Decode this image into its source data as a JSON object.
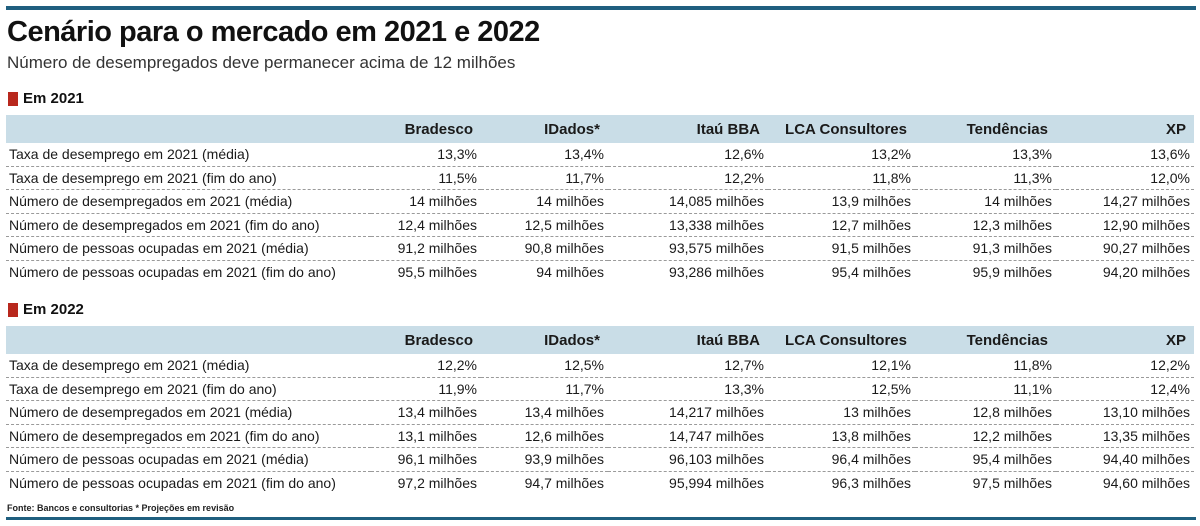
{
  "title": "Cenário para o mercado em 2021 e 2022",
  "subtitle": "Número de desempregados deve permanecer acima de 12 milhões",
  "columns": [
    "Bradesco",
    "IDados*",
    "Itaú BBA",
    "LCA Consultores",
    "Tendências",
    "XP"
  ],
  "sections": [
    {
      "label": "Em 2021",
      "rows": [
        {
          "label": "Taxa de desemprego em 2021 (média)",
          "values": [
            "13,3%",
            "13,4%",
            "12,6%",
            "13,2%",
            "13,3%",
            "13,6%"
          ]
        },
        {
          "label": "Taxa de desemprego em 2021 (fim do ano)",
          "values": [
            "11,5%",
            "11,7%",
            "12,2%",
            "11,8%",
            "11,3%",
            "12,0%"
          ]
        },
        {
          "label": "Número de desempregados em 2021 (média)",
          "values": [
            "14 milhões",
            "14 milhões",
            "14,085 milhões",
            "13,9 milhões",
            "14 milhões",
            "14,27 milhões"
          ]
        },
        {
          "label": "Número de desempregados em 2021 (fim do ano)",
          "values": [
            "12,4 milhões",
            "12,5 milhões",
            "13,338 milhões",
            "12,7 milhões",
            "12,3 milhões",
            "12,90 milhões"
          ]
        },
        {
          "label": "Número de pessoas ocupadas em 2021 (média)",
          "values": [
            "91,2 milhões",
            "90,8 milhões",
            "93,575 milhões",
            "91,5 milhões",
            "91,3 milhões",
            "90,27 milhões"
          ]
        },
        {
          "label": "Número de pessoas ocupadas em 2021 (fim do ano)",
          "values": [
            "95,5 milhões",
            "94 milhões",
            "93,286 milhões",
            "95,4 milhões",
            "95,9 milhões",
            "94,20 milhões"
          ]
        }
      ]
    },
    {
      "label": "Em 2022",
      "rows": [
        {
          "label": "Taxa de desemprego em 2021 (média)",
          "values": [
            "12,2%",
            "12,5%",
            "12,7%",
            "12,1%",
            "11,8%",
            "12,2%"
          ]
        },
        {
          "label": "Taxa de desemprego em 2021 (fim do ano)",
          "values": [
            "11,9%",
            "11,7%",
            "13,3%",
            "12,5%",
            "11,1%",
            "12,4%"
          ]
        },
        {
          "label": "Número de desempregados em 2021 (média)",
          "values": [
            "13,4 milhões",
            "13,4 milhões",
            "14,217 milhões",
            "13 milhões",
            "12,8 milhões",
            "13,10 milhões"
          ]
        },
        {
          "label": "Número de desempregados em 2021 (fim do ano)",
          "values": [
            "13,1 milhões",
            "12,6 milhões",
            "14,747 milhões",
            "13,8 milhões",
            "12,2 milhões",
            "13,35 milhões"
          ]
        },
        {
          "label": "Número de pessoas ocupadas em 2021 (média)",
          "values": [
            "96,1 milhões",
            "93,9 milhões",
            "96,103 milhões",
            "96,4 milhões",
            "95,4 milhões",
            "94,40 milhões"
          ]
        },
        {
          "label": "Número de pessoas ocupadas em 2021 (fim do ano)",
          "values": [
            "97,2 milhões",
            "94,7 milhões",
            "95,994 milhões",
            "96,3 milhões",
            "97,5 milhões",
            "94,60 milhões"
          ]
        }
      ]
    }
  ],
  "footnote": "Fonte: Bancos e consultorias * Projeções em revisão",
  "colors": {
    "accent_bar": "#1f5f7f",
    "section_marker": "#b8281d",
    "header_band": "#c9dde7"
  }
}
